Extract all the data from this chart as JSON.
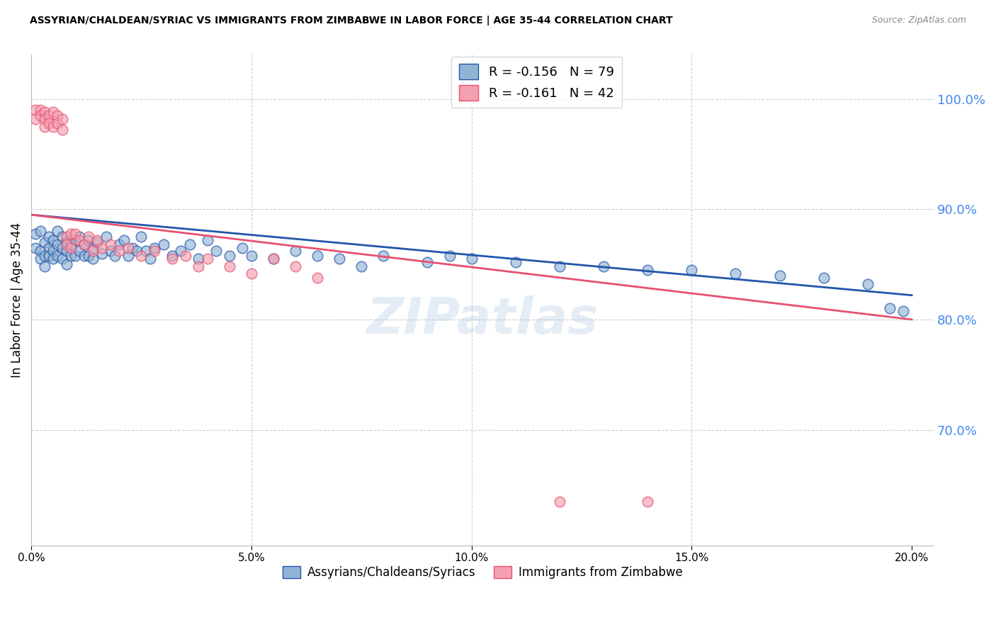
{
  "title": "ASSYRIAN/CHALDEAN/SYRIAC VS IMMIGRANTS FROM ZIMBABWE IN LABOR FORCE | AGE 35-44 CORRELATION CHART",
  "source": "Source: ZipAtlas.com",
  "ylabel_left": "In Labor Force | Age 35-44",
  "legend_label1": "Assyrians/Chaldeans/Syriacs",
  "legend_label2": "Immigrants from Zimbabwe",
  "R1": -0.156,
  "N1": 79,
  "R2": -0.161,
  "N2": 42,
  "color_blue": "#92B4D4",
  "color_pink": "#F4A0B0",
  "color_blue_line": "#2255AA",
  "color_pink_line": "#E85070",
  "color_axis_right": "#4488EE",
  "color_grid": "#CCCCCC",
  "watermark": "ZIPatlas",
  "xlim": [
    0.0,
    0.205
  ],
  "ylim": [
    0.595,
    1.04
  ],
  "yticks_right": [
    0.7,
    0.8,
    0.9,
    1.0
  ],
  "xticks": [
    0.0,
    0.05,
    0.1,
    0.15,
    0.2
  ],
  "blue_scatter_x": [
    0.001,
    0.001,
    0.002,
    0.002,
    0.002,
    0.003,
    0.003,
    0.003,
    0.004,
    0.004,
    0.004,
    0.005,
    0.005,
    0.005,
    0.006,
    0.006,
    0.006,
    0.007,
    0.007,
    0.007,
    0.008,
    0.008,
    0.008,
    0.009,
    0.009,
    0.01,
    0.01,
    0.011,
    0.011,
    0.012,
    0.012,
    0.013,
    0.013,
    0.014,
    0.014,
    0.015,
    0.016,
    0.017,
    0.018,
    0.019,
    0.02,
    0.021,
    0.022,
    0.023,
    0.024,
    0.025,
    0.026,
    0.027,
    0.028,
    0.03,
    0.032,
    0.034,
    0.036,
    0.038,
    0.04,
    0.042,
    0.045,
    0.048,
    0.05,
    0.055,
    0.06,
    0.065,
    0.07,
    0.075,
    0.08,
    0.09,
    0.095,
    0.1,
    0.11,
    0.12,
    0.13,
    0.14,
    0.15,
    0.16,
    0.17,
    0.18,
    0.19,
    0.195,
    0.198
  ],
  "blue_scatter_y": [
    0.878,
    0.865,
    0.88,
    0.862,
    0.855,
    0.87,
    0.858,
    0.848,
    0.875,
    0.865,
    0.858,
    0.872,
    0.862,
    0.855,
    0.88,
    0.868,
    0.858,
    0.875,
    0.865,
    0.855,
    0.87,
    0.862,
    0.85,
    0.868,
    0.858,
    0.872,
    0.858,
    0.875,
    0.862,
    0.868,
    0.858,
    0.872,
    0.858,
    0.865,
    0.855,
    0.87,
    0.86,
    0.875,
    0.862,
    0.858,
    0.868,
    0.872,
    0.858,
    0.865,
    0.862,
    0.875,
    0.862,
    0.855,
    0.865,
    0.868,
    0.858,
    0.862,
    0.868,
    0.855,
    0.872,
    0.862,
    0.858,
    0.865,
    0.858,
    0.855,
    0.862,
    0.858,
    0.855,
    0.848,
    0.858,
    0.852,
    0.858,
    0.855,
    0.852,
    0.848,
    0.848,
    0.845,
    0.845,
    0.842,
    0.84,
    0.838,
    0.832,
    0.81,
    0.808
  ],
  "pink_scatter_x": [
    0.001,
    0.001,
    0.002,
    0.002,
    0.003,
    0.003,
    0.003,
    0.004,
    0.004,
    0.005,
    0.005,
    0.006,
    0.006,
    0.007,
    0.007,
    0.008,
    0.008,
    0.009,
    0.009,
    0.01,
    0.011,
    0.012,
    0.013,
    0.014,
    0.015,
    0.016,
    0.018,
    0.02,
    0.022,
    0.025,
    0.028,
    0.032,
    0.035,
    0.038,
    0.04,
    0.045,
    0.05,
    0.055,
    0.06,
    0.065,
    0.12,
    0.14
  ],
  "pink_scatter_y": [
    0.99,
    0.982,
    0.99,
    0.985,
    0.988,
    0.982,
    0.975,
    0.985,
    0.978,
    0.988,
    0.975,
    0.985,
    0.978,
    0.982,
    0.972,
    0.875,
    0.868,
    0.878,
    0.865,
    0.878,
    0.872,
    0.868,
    0.875,
    0.862,
    0.872,
    0.865,
    0.868,
    0.862,
    0.865,
    0.858,
    0.862,
    0.855,
    0.858,
    0.848,
    0.855,
    0.848,
    0.842,
    0.855,
    0.848,
    0.838,
    0.635,
    0.635
  ],
  "blue_line_y0": 0.895,
  "blue_line_y1": 0.822,
  "pink_line_y0": 0.895,
  "pink_line_y1": 0.8
}
